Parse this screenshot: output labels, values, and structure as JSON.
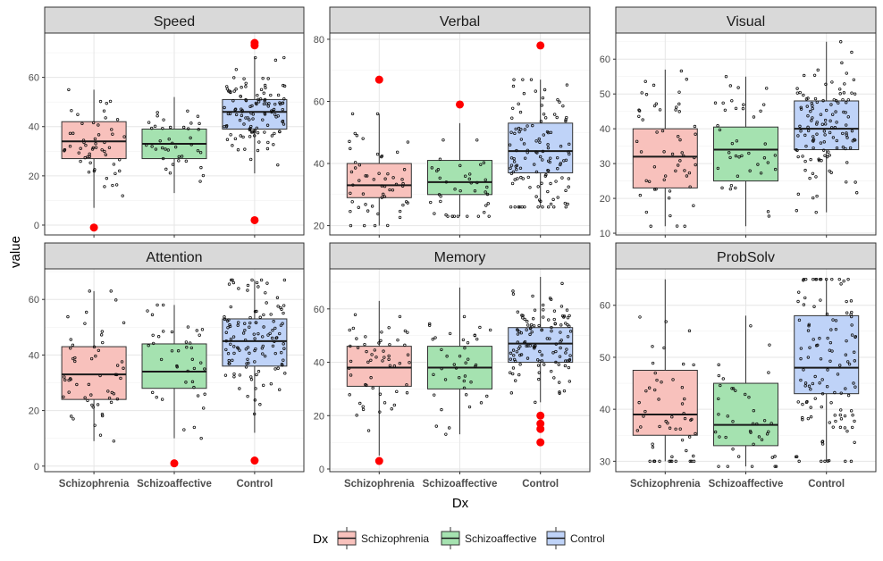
{
  "chart_data": {
    "type": "boxplot",
    "xlabel": "Dx",
    "ylabel": "value",
    "categories": [
      "Schizophrenia",
      "Schizoaffective",
      "Control"
    ],
    "colors": {
      "Schizophrenia": "#F8C1BC",
      "Schizoaffective": "#A5E2B0",
      "Control": "#BFD3F8"
    },
    "outlier_color": "#FF0000",
    "legend": {
      "title": "Dx",
      "position": "bottom",
      "items": [
        "Schizophrenia",
        "Schizoaffective",
        "Control"
      ]
    },
    "panels": [
      {
        "title": "Speed",
        "ylim": [
          -4,
          78
        ],
        "yticks": [
          0,
          20,
          40,
          60
        ],
        "boxes": [
          {
            "category": "Schizophrenia",
            "min": 7,
            "q1": 27,
            "median": 34,
            "q3": 42,
            "max": 55,
            "outliers": [
              -1
            ]
          },
          {
            "category": "Schizoaffective",
            "min": 13,
            "q1": 27,
            "median": 33,
            "q3": 39,
            "max": 52,
            "outliers": []
          },
          {
            "category": "Control",
            "min": 21,
            "q1": 39,
            "median": 46,
            "q3": 51,
            "max": 68,
            "outliers": [
              2,
              73,
              74
            ]
          }
        ]
      },
      {
        "title": "Verbal",
        "ylim": [
          17,
          82
        ],
        "yticks": [
          20,
          40,
          60,
          80
        ],
        "boxes": [
          {
            "category": "Schizophrenia",
            "min": 20,
            "q1": 29,
            "median": 33,
            "q3": 40,
            "max": 56,
            "outliers": [
              67
            ]
          },
          {
            "category": "Schizoaffective",
            "min": 23,
            "q1": 30,
            "median": 34,
            "q3": 41,
            "max": 53,
            "outliers": [
              59
            ]
          },
          {
            "category": "Control",
            "min": 26,
            "q1": 37,
            "median": 44,
            "q3": 53,
            "max": 67,
            "outliers": [
              78
            ]
          }
        ]
      },
      {
        "title": "Visual",
        "ylim": [
          9.5,
          67.5
        ],
        "yticks": [
          10,
          20,
          30,
          40,
          50,
          60
        ],
        "boxes": [
          {
            "category": "Schizophrenia",
            "min": 12,
            "q1": 23,
            "median": 32,
            "q3": 40,
            "max": 57,
            "outliers": []
          },
          {
            "category": "Schizoaffective",
            "min": 12,
            "q1": 25,
            "median": 34,
            "q3": 40.5,
            "max": 55,
            "outliers": []
          },
          {
            "category": "Control",
            "min": 16,
            "q1": 34,
            "median": 40,
            "q3": 48,
            "max": 65,
            "outliers": []
          }
        ]
      },
      {
        "title": "Attention",
        "ylim": [
          -2,
          71
        ],
        "yticks": [
          0,
          20,
          40,
          60
        ],
        "boxes": [
          {
            "category": "Schizophrenia",
            "min": 9,
            "q1": 24,
            "median": 33,
            "q3": 43,
            "max": 63,
            "outliers": []
          },
          {
            "category": "Schizoaffective",
            "min": 10,
            "q1": 28,
            "median": 34,
            "q3": 44,
            "max": 58,
            "outliers": [
              1
            ]
          },
          {
            "category": "Control",
            "min": 12,
            "q1": 36,
            "median": 45,
            "q3": 53,
            "max": 67,
            "outliers": [
              2
            ]
          }
        ]
      },
      {
        "title": "Memory",
        "ylim": [
          -1,
          75
        ],
        "yticks": [
          0,
          20,
          40,
          60
        ],
        "boxes": [
          {
            "category": "Schizophrenia",
            "min": 5,
            "q1": 31,
            "median": 38,
            "q3": 46,
            "max": 63,
            "outliers": [
              3
            ]
          },
          {
            "category": "Schizoaffective",
            "min": 13,
            "q1": 30,
            "median": 38,
            "q3": 46,
            "max": 68,
            "outliers": []
          },
          {
            "category": "Control",
            "min": 25,
            "q1": 40,
            "median": 47,
            "q3": 53,
            "max": 72,
            "outliers": [
              10,
              15,
              17,
              20
            ]
          }
        ]
      },
      {
        "title": "ProbSolv",
        "ylim": [
          28,
          67
        ],
        "yticks": [
          30,
          40,
          50,
          60
        ],
        "boxes": [
          {
            "category": "Schizophrenia",
            "min": 30,
            "q1": 35,
            "median": 39,
            "q3": 47.5,
            "max": 65,
            "outliers": []
          },
          {
            "category": "Schizoaffective",
            "min": 29,
            "q1": 33,
            "median": 37,
            "q3": 45,
            "max": 58,
            "outliers": []
          },
          {
            "category": "Control",
            "min": 30,
            "q1": 43,
            "median": 48,
            "q3": 58,
            "max": 65,
            "outliers": []
          }
        ]
      }
    ]
  }
}
